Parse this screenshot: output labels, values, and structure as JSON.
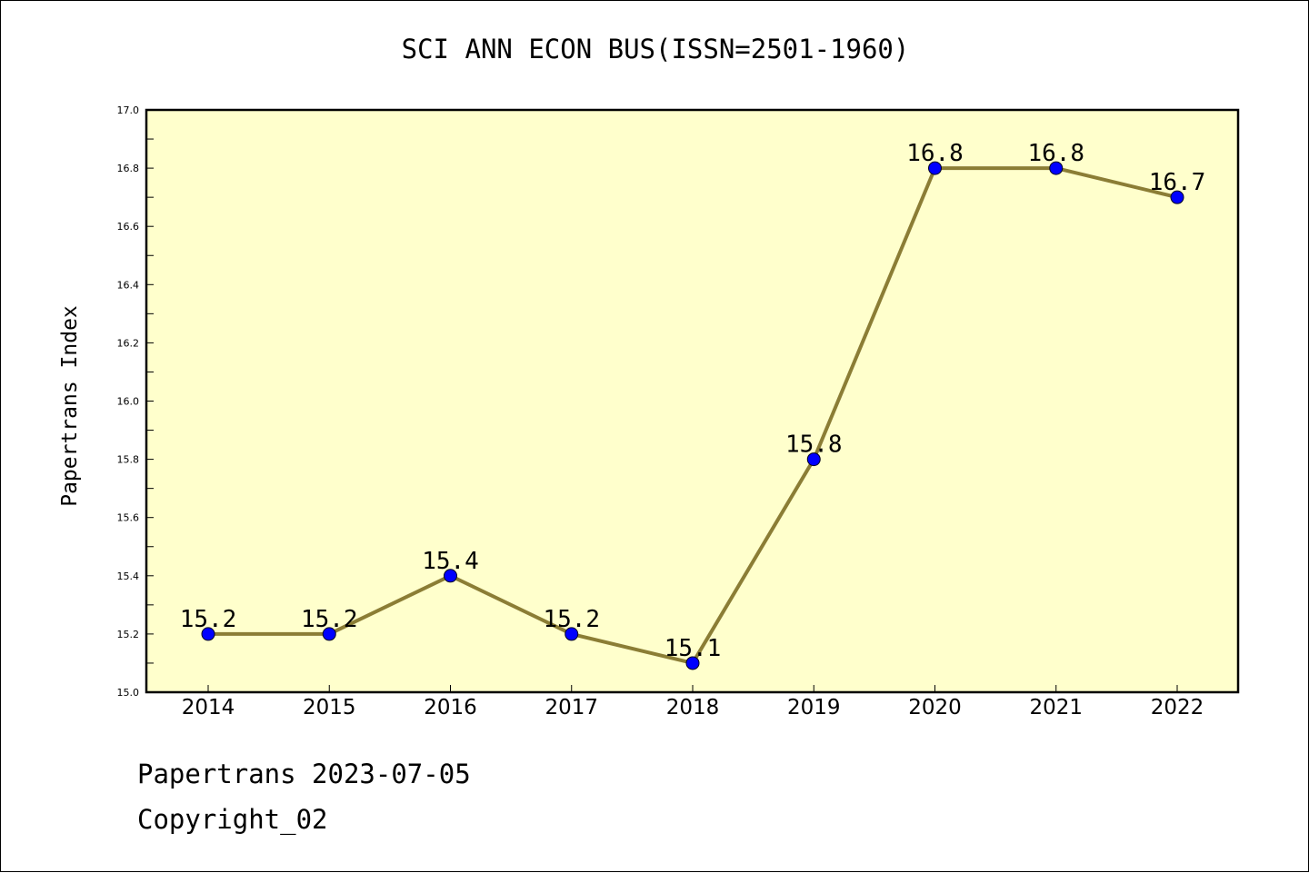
{
  "chart_data": {
    "type": "line",
    "title": "SCI ANN ECON BUS(ISSN=2501-1960)",
    "xlabel": "",
    "ylabel": "Papertrans Index",
    "categories": [
      "2014",
      "2015",
      "2016",
      "2017",
      "2018",
      "2019",
      "2020",
      "2021",
      "2022"
    ],
    "values": [
      15.2,
      15.2,
      15.4,
      15.2,
      15.1,
      15.8,
      16.8,
      16.8,
      16.7
    ],
    "data_labels": [
      "15.2",
      "15.2",
      "15.4",
      "15.2",
      "15.1",
      "15.8",
      "16.8",
      "16.8",
      "16.7"
    ],
    "ylim": [
      15.0,
      17.0
    ],
    "yticks": [
      "15.0",
      "15.2",
      "15.4",
      "15.6",
      "15.8",
      "16.0",
      "16.2",
      "16.4",
      "16.6",
      "16.8",
      "17.0"
    ],
    "grid": false,
    "colors": {
      "plot_background": "#ffffcc",
      "line": "#8b7d35",
      "marker": "#0000ff",
      "axes": "#000000"
    }
  },
  "footer": {
    "source": "Papertrans 2023-07-05",
    "copyright": "Copyright_02"
  }
}
